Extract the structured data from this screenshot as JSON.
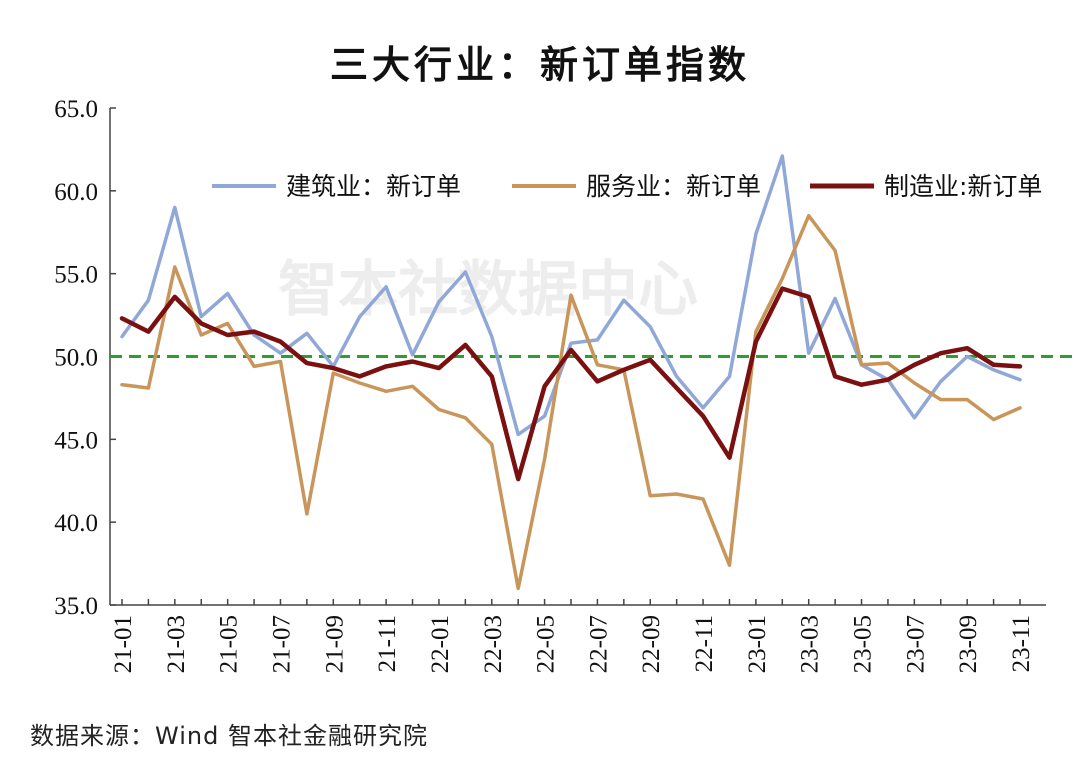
{
  "title": "三大行业：新订单指数",
  "source": "数据来源：Wind 智本社金融研究院",
  "watermark": "智本社数据中心",
  "chart_data": {
    "type": "line",
    "title": "三大行业：新订单指数",
    "xlabel": "",
    "ylabel": "",
    "ylim": [
      35,
      65
    ],
    "yticks": [
      "35.0",
      "40.0",
      "45.0",
      "50.0",
      "55.0",
      "60.0",
      "65.0"
    ],
    "reference_line": {
      "y": 50,
      "style": "dashed",
      "color": "#2ca02c"
    },
    "legend_position": "top",
    "grid": false,
    "x": [
      "21-01",
      "21-02",
      "21-03",
      "21-04",
      "21-05",
      "21-06",
      "21-07",
      "21-08",
      "21-09",
      "21-10",
      "21-11",
      "21-12",
      "22-01",
      "22-02",
      "22-03",
      "22-04",
      "22-05",
      "22-06",
      "22-07",
      "22-08",
      "22-09",
      "22-10",
      "22-11",
      "22-12",
      "23-01",
      "23-02",
      "23-03",
      "23-04",
      "23-05",
      "23-06",
      "23-07",
      "23-08",
      "23-09",
      "23-10",
      "23-11"
    ],
    "xtick_labels": [
      "21-01",
      "21-03",
      "21-05",
      "21-07",
      "21-09",
      "21-11",
      "22-01",
      "22-03",
      "22-05",
      "22-07",
      "22-09",
      "22-11",
      "23-01",
      "23-03",
      "23-05",
      "23-07",
      "23-09",
      "23-11"
    ],
    "series": [
      {
        "name": "建筑业：新订单",
        "color": "#8fa8d8",
        "values": [
          51.2,
          53.4,
          59.0,
          52.4,
          53.8,
          51.3,
          50.2,
          51.4,
          49.4,
          52.4,
          54.2,
          50.1,
          53.3,
          55.1,
          51.2,
          45.3,
          46.4,
          50.8,
          51.0,
          53.4,
          51.8,
          48.8,
          46.9,
          48.8,
          57.4,
          62.1,
          50.2,
          53.5,
          49.5,
          48.6,
          46.3,
          48.5,
          50.0,
          49.2,
          48.6
        ]
      },
      {
        "name": "服务业：新订单",
        "color": "#c8965a",
        "values": [
          48.3,
          48.1,
          55.4,
          51.3,
          52.0,
          49.4,
          49.7,
          40.5,
          49.0,
          48.4,
          47.9,
          48.2,
          46.8,
          46.3,
          44.7,
          36.0,
          43.8,
          53.7,
          49.5,
          49.2,
          41.6,
          41.7,
          41.4,
          37.4,
          51.5,
          54.7,
          58.5,
          56.4,
          49.5,
          49.6,
          48.4,
          47.4,
          47.4,
          46.2,
          46.9
        ]
      },
      {
        "name": "制造业:新订单",
        "color": "#7a1010",
        "values": [
          52.3,
          51.5,
          53.6,
          52.0,
          51.3,
          51.5,
          50.9,
          49.6,
          49.3,
          48.8,
          49.4,
          49.7,
          49.3,
          50.7,
          48.8,
          42.6,
          48.2,
          50.4,
          48.5,
          49.2,
          49.8,
          48.1,
          46.4,
          43.9,
          50.9,
          54.1,
          53.6,
          48.8,
          48.3,
          48.6,
          49.5,
          50.2,
          50.5,
          49.5,
          49.4
        ]
      }
    ]
  }
}
